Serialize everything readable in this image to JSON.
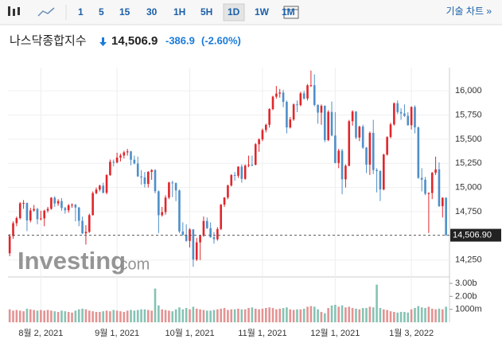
{
  "toolbar": {
    "intervals": [
      "1",
      "5",
      "15",
      "30",
      "1H",
      "5H",
      "1D",
      "1W",
      "1M"
    ],
    "active": "1D",
    "tech_chart": "기술 차트 »"
  },
  "header": {
    "name": "나스닥종합지수",
    "price": "14,506.9",
    "change": "-386.9",
    "change_pct": "(-2.60%)"
  },
  "chart_data": {
    "type": "candlestick",
    "watermark": "Investing",
    "watermark_suffix": ".com",
    "up_color": "#e0262b",
    "down_color": "#4f8fc8",
    "volume_up_color": "#e49393",
    "volume_down_color": "#86c3b4",
    "xlim": [
      -0.5,
      127
    ],
    "xticks": [
      {
        "value": 9,
        "label": "8월 2, 2021"
      },
      {
        "value": 31,
        "label": "9월 1, 2021"
      },
      {
        "value": 52,
        "label": "10월 1, 2021"
      },
      {
        "value": 73,
        "label": "11월 1, 2021"
      },
      {
        "value": 94,
        "label": "12월 1, 2021"
      },
      {
        "value": 116,
        "label": "1월 3, 2022"
      }
    ],
    "ylim": [
      14100,
      16240
    ],
    "yticks": [
      {
        "value": 14250,
        "label": "14,250"
      },
      {
        "value": 14750,
        "label": "14,750"
      },
      {
        "value": 15000,
        "label": "15,000"
      },
      {
        "value": 15250,
        "label": "15,250"
      },
      {
        "value": 15500,
        "label": "15,500"
      },
      {
        "value": 15750,
        "label": "15,750"
      },
      {
        "value": 16000,
        "label": "16,000"
      }
    ],
    "last_price": {
      "value": 14506.9,
      "label": "14,506.90"
    },
    "vlim": [
      0,
      3370000000
    ],
    "vticks": [
      {
        "value": 3000000000,
        "label": "3.00b"
      },
      {
        "value": 2000000000,
        "label": "2.00b"
      },
      {
        "value": 1000000000,
        "label": "1000m"
      }
    ],
    "ohlc": [
      [
        14320,
        14520,
        14290,
        14498
      ],
      [
        14498,
        14650,
        14470,
        14631
      ],
      [
        14631,
        14700,
        14600,
        14684
      ],
      [
        14684,
        14850,
        14670,
        14837
      ],
      [
        14837,
        14870,
        14780,
        14840
      ],
      [
        14840,
        14845,
        14550,
        14660
      ],
      [
        14660,
        14790,
        14640,
        14763
      ],
      [
        14763,
        14820,
        14750,
        14778
      ],
      [
        14778,
        14790,
        14620,
        14673
      ],
      [
        14673,
        14760,
        14660,
        14681
      ],
      [
        14681,
        14770,
        14600,
        14761
      ],
      [
        14761,
        14800,
        14740,
        14780
      ],
      [
        14780,
        14900,
        14770,
        14895
      ],
      [
        14895,
        14910,
        14800,
        14835
      ],
      [
        14835,
        14880,
        14810,
        14860
      ],
      [
        14860,
        14890,
        14760,
        14788
      ],
      [
        14788,
        14800,
        14730,
        14765
      ],
      [
        14765,
        14830,
        14740,
        14816
      ],
      [
        14816,
        14835,
        14790,
        14823
      ],
      [
        14823,
        14830,
        14650,
        14793
      ],
      [
        14793,
        14800,
        14600,
        14656
      ],
      [
        14656,
        14700,
        14520,
        14526
      ],
      [
        14526,
        14610,
        14410,
        14542
      ],
      [
        14542,
        14730,
        14530,
        14715
      ],
      [
        14715,
        14960,
        14710,
        14942
      ],
      [
        14942,
        15000,
        14930,
        14979
      ],
      [
        14979,
        15030,
        14960,
        15019
      ],
      [
        15019,
        15050,
        14940,
        14946
      ],
      [
        14946,
        15140,
        14930,
        15129
      ],
      [
        15129,
        15290,
        15120,
        15266
      ],
      [
        15266,
        15290,
        15220,
        15259
      ],
      [
        15259,
        15360,
        15250,
        15310
      ],
      [
        15310,
        15350,
        15270,
        15331
      ],
      [
        15331,
        15380,
        15300,
        15364
      ],
      [
        15364,
        15400,
        15330,
        15374
      ],
      [
        15374,
        15380,
        15230,
        15287
      ],
      [
        15287,
        15330,
        15240,
        15248
      ],
      [
        15248,
        15320,
        15110,
        15115
      ],
      [
        15115,
        15180,
        15030,
        15105
      ],
      [
        15105,
        15160,
        15000,
        15037
      ],
      [
        15037,
        15170,
        15000,
        15162
      ],
      [
        15162,
        15190,
        15080,
        15181
      ],
      [
        15181,
        15190,
        14940,
        14961
      ],
      [
        14961,
        14970,
        14530,
        14714
      ],
      [
        14714,
        14800,
        14700,
        14746
      ],
      [
        14746,
        14920,
        14720,
        14896
      ],
      [
        14896,
        15060,
        14880,
        15052
      ],
      [
        15052,
        15070,
        14900,
        15048
      ],
      [
        15048,
        15050,
        14860,
        14970
      ],
      [
        14970,
        14980,
        14530,
        14546
      ],
      [
        14546,
        14640,
        14500,
        14512
      ],
      [
        14512,
        14620,
        14440,
        14448
      ],
      [
        14448,
        14580,
        14380,
        14567
      ],
      [
        14567,
        14570,
        14180,
        14255
      ],
      [
        14255,
        14480,
        14240,
        14433
      ],
      [
        14433,
        14510,
        14250,
        14501
      ],
      [
        14501,
        14700,
        14490,
        14654
      ],
      [
        14654,
        14690,
        14570,
        14580
      ],
      [
        14580,
        14640,
        14480,
        14486
      ],
      [
        14486,
        14540,
        14420,
        14465
      ],
      [
        14465,
        14590,
        14450,
        14571
      ],
      [
        14571,
        14830,
        14560,
        14823
      ],
      [
        14823,
        14900,
        14800,
        14897
      ],
      [
        14897,
        15030,
        14880,
        15021
      ],
      [
        15021,
        15140,
        15010,
        15129
      ],
      [
        15129,
        15160,
        15070,
        15122
      ],
      [
        15122,
        15220,
        15100,
        15216
      ],
      [
        15216,
        15240,
        15050,
        15090
      ],
      [
        15090,
        15240,
        15080,
        15227
      ],
      [
        15227,
        15330,
        15210,
        15236
      ],
      [
        15236,
        15330,
        15220,
        15235
      ],
      [
        15235,
        15460,
        15230,
        15448
      ],
      [
        15448,
        15510,
        15370,
        15498
      ],
      [
        15498,
        15610,
        15480,
        15595
      ],
      [
        15595,
        15660,
        15570,
        15649
      ],
      [
        15649,
        15820,
        15620,
        15812
      ],
      [
        15812,
        15950,
        15800,
        15940
      ],
      [
        15940,
        16050,
        15920,
        15971
      ],
      [
        15971,
        16020,
        15930,
        15982
      ],
      [
        15982,
        16010,
        15830,
        15886
      ],
      [
        15886,
        15900,
        15560,
        15622
      ],
      [
        15622,
        15730,
        15610,
        15704
      ],
      [
        15704,
        15870,
        15690,
        15860
      ],
      [
        15860,
        15900,
        15780,
        15853
      ],
      [
        15853,
        15990,
        15840,
        15974
      ],
      [
        15974,
        16000,
        15910,
        15921
      ],
      [
        15921,
        16070,
        15900,
        16057
      ],
      [
        16057,
        16210,
        16040,
        16058
      ],
      [
        16058,
        16170,
        15840,
        15854
      ],
      [
        15854,
        15860,
        15660,
        15775
      ],
      [
        15775,
        15860,
        15650,
        15845
      ],
      [
        15845,
        15850,
        15470,
        15491
      ],
      [
        15491,
        15800,
        15480,
        15782
      ],
      [
        15782,
        15890,
        15530,
        15538
      ],
      [
        15538,
        15780,
        15250,
        15254
      ],
      [
        15254,
        15400,
        15200,
        15381
      ],
      [
        15381,
        15400,
        14930,
        15085
      ],
      [
        15085,
        15240,
        15000,
        15225
      ],
      [
        15225,
        15700,
        15220,
        15686
      ],
      [
        15686,
        15800,
        15640,
        15786
      ],
      [
        15786,
        15790,
        15500,
        15517
      ],
      [
        15517,
        15640,
        15480,
        15630
      ],
      [
        15630,
        15650,
        15400,
        15413
      ],
      [
        15413,
        15420,
        15150,
        15237
      ],
      [
        15237,
        15580,
        15130,
        15565
      ],
      [
        15565,
        15700,
        15140,
        15181
      ],
      [
        15181,
        15200,
        14950,
        15170
      ],
      [
        15170,
        15180,
        14860,
        14981
      ],
      [
        14981,
        15350,
        14970,
        15341
      ],
      [
        15341,
        15530,
        15330,
        15522
      ],
      [
        15522,
        15670,
        15510,
        15653
      ],
      [
        15653,
        15880,
        15640,
        15871
      ],
      [
        15871,
        15900,
        15760,
        15781
      ],
      [
        15781,
        15820,
        15700,
        15766
      ],
      [
        15766,
        15860,
        15730,
        15741
      ],
      [
        15741,
        15780,
        15640,
        15645
      ],
      [
        15645,
        15840,
        15600,
        15833
      ],
      [
        15833,
        15850,
        15560,
        15622
      ],
      [
        15622,
        15630,
        15090,
        15100
      ],
      [
        15100,
        15200,
        14960,
        15081
      ],
      [
        15081,
        15110,
        14920,
        14936
      ],
      [
        14936,
        14950,
        14530,
        14943
      ],
      [
        14943,
        15160,
        14880,
        15153
      ],
      [
        15153,
        15320,
        15130,
        15188
      ],
      [
        15188,
        15260,
        14800,
        14807
      ],
      [
        14807,
        14900,
        14690,
        14894
      ],
      [
        14894,
        14900,
        14500,
        14506.9
      ]
    ],
    "volume": [
      1000000000.0,
      900000000.0,
      950000000.0,
      900000000.0,
      850000000.0,
      1050000000.0,
      1000000000.0,
      950000000.0,
      900000000.0,
      950000000.0,
      900000000.0,
      950000000.0,
      900000000.0,
      850000000.0,
      800000000.0,
      900000000.0,
      850000000.0,
      800000000.0,
      750000000.0,
      900000000.0,
      1000000000.0,
      1050000000.0,
      1000000000.0,
      900000000.0,
      850000000.0,
      800000000.0,
      800000000.0,
      850000000.0,
      900000000.0,
      850000000.0,
      950000000.0,
      900000000.0,
      850000000.0,
      800000000.0,
      900000000.0,
      950000000.0,
      900000000.0,
      950000000.0,
      1000000000.0,
      1000000000.0,
      950000000.0,
      900000000.0,
      2600000000.0,
      1300000000.0,
      1000000000.0,
      950000000.0,
      900000000.0,
      850000000.0,
      1000000000.0,
      1150000000.0,
      1000000000.0,
      1100000000.0,
      1000000000.0,
      1200000000.0,
      1050000000.0,
      1000000000.0,
      950000000.0,
      900000000.0,
      900000000.0,
      950000000.0,
      1000000000.0,
      1050000000.0,
      1100000000.0,
      950000000.0,
      1000000000.0,
      1000000000.0,
      1050000000.0,
      1000000000.0,
      1000000000.0,
      1100000000.0,
      1150000000.0,
      1050000000.0,
      1000000000.0,
      1050000000.0,
      1100000000.0,
      1150000000.0,
      1100000000.0,
      1000000000.0,
      1050000000.0,
      1100000000.0,
      1150000000.0,
      1000000000.0,
      950000000.0,
      1000000000.0,
      1000000000.0,
      1050000000.0,
      1200000000.0,
      1250000000.0,
      1200000000.0,
      1000000000.0,
      800000000.0,
      700000000.0,
      1100000000.0,
      1300000000.0,
      1350000000.0,
      1200000000.0,
      1300000000.0,
      1150000000.0,
      1200000000.0,
      1100000000.0,
      1050000000.0,
      1000000000.0,
      1100000000.0,
      1100000000.0,
      1200000000.0,
      1150000000.0,
      2900000000.0,
      1100000000.0,
      1000000000.0,
      950000000.0,
      850000000.0,
      800000000.0,
      750000000.0,
      800000000.0,
      800000000.0,
      750000000.0,
      1000000000.0,
      1100000000.0,
      1250000000.0,
      1150000000.0,
      1100000000.0,
      1200000000.0,
      1050000000.0,
      1000000000.0,
      1050000000.0,
      1000000000.0,
      1200000000.0
    ]
  }
}
